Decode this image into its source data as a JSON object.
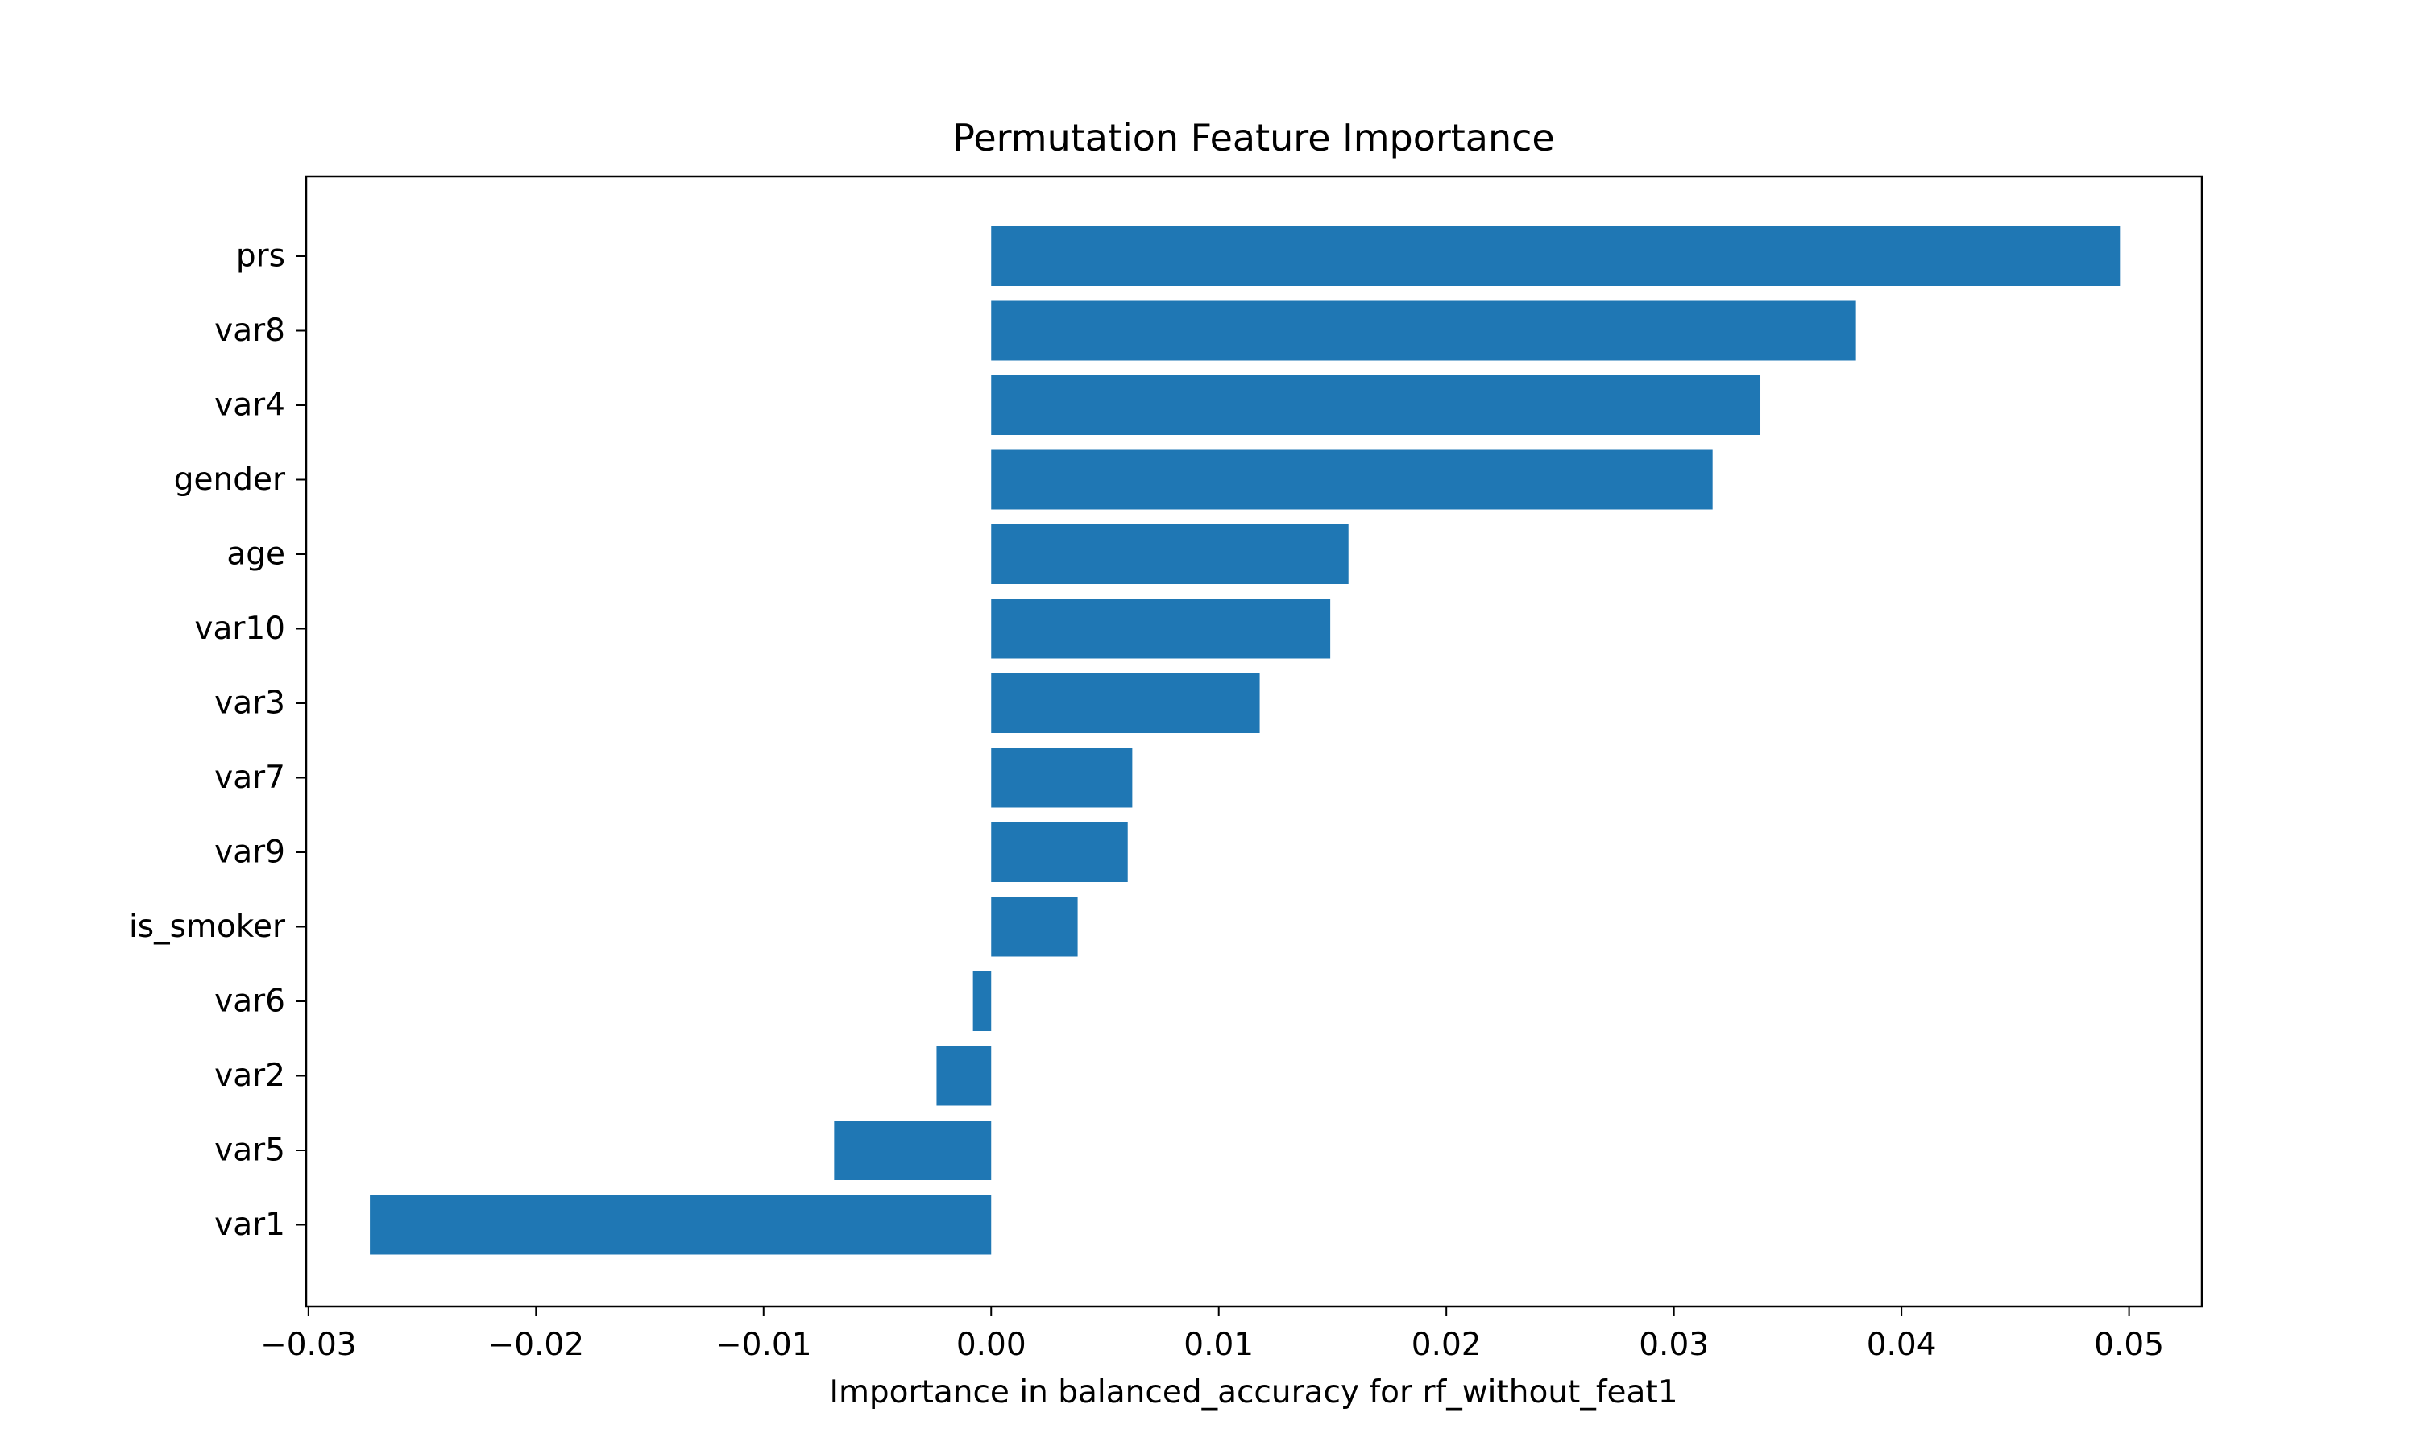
{
  "chart_data": {
    "type": "bar",
    "orientation": "horizontal",
    "title": "Permutation Feature Importance",
    "xlabel": "Importance in balanced_accuracy for rf_without_feat1",
    "ylabel": "",
    "xlim": [
      -0.0301,
      0.0532
    ],
    "xticks": [
      -0.03,
      -0.02,
      -0.01,
      0.0,
      0.01,
      0.02,
      0.03,
      0.04,
      0.05
    ],
    "xtick_labels": [
      "−0.03",
      "−0.02",
      "−0.01",
      "0.00",
      "0.01",
      "0.02",
      "0.03",
      "0.04",
      "0.05"
    ],
    "categories": [
      "prs",
      "var8",
      "var4",
      "gender",
      "age",
      "var10",
      "var3",
      "var7",
      "var9",
      "is_smoker",
      "var6",
      "var2",
      "var5",
      "var1"
    ],
    "values": [
      0.0496,
      0.038,
      0.0338,
      0.0317,
      0.0157,
      0.0149,
      0.0118,
      0.0062,
      0.006,
      0.0038,
      -0.0008,
      -0.0024,
      -0.0069,
      -0.0273
    ],
    "bar_color": "#1f77b4",
    "grid": false,
    "legend": "none"
  }
}
